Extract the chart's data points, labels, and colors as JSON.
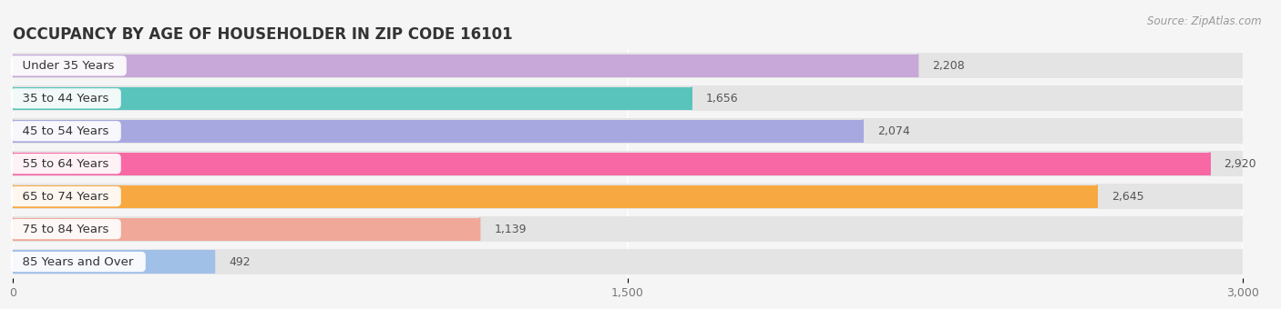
{
  "title": "OCCUPANCY BY AGE OF HOUSEHOLDER IN ZIP CODE 16101",
  "source": "Source: ZipAtlas.com",
  "categories": [
    "Under 35 Years",
    "35 to 44 Years",
    "45 to 54 Years",
    "55 to 64 Years",
    "65 to 74 Years",
    "75 to 84 Years",
    "85 Years and Over"
  ],
  "values": [
    2208,
    1656,
    2074,
    2920,
    2645,
    1139,
    492
  ],
  "colors": [
    "#c8a8d8",
    "#58c4bc",
    "#a8a8e0",
    "#f868a4",
    "#f8a840",
    "#f0a898",
    "#a0c0e8"
  ],
  "xlim": [
    0,
    3000
  ],
  "xticks": [
    0,
    1500,
    3000
  ],
  "bar_height": 0.7,
  "background_color": "#f5f5f5",
  "bar_bg_color": "#e4e4e4",
  "title_fontsize": 12,
  "label_fontsize": 9.5,
  "value_fontsize": 9
}
